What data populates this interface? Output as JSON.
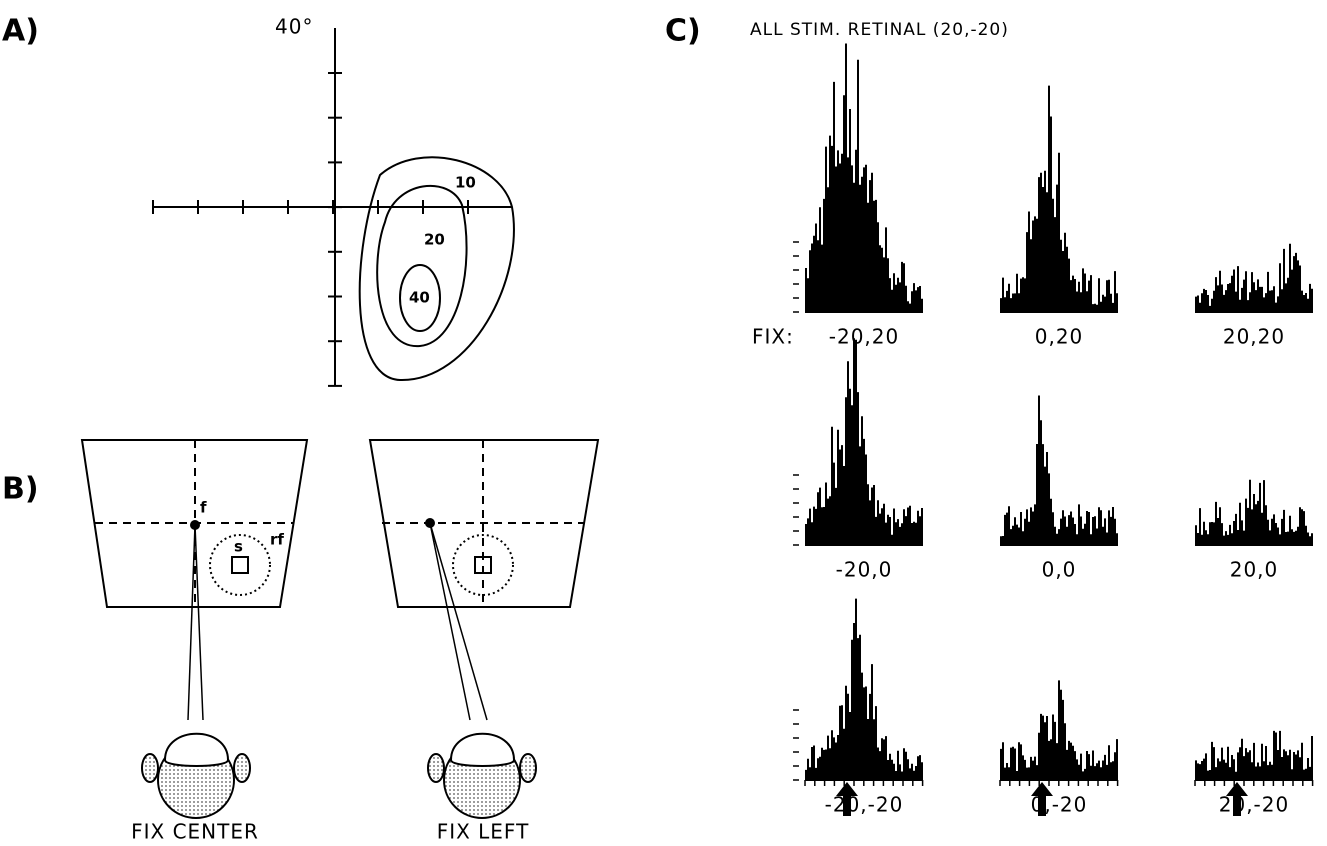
{
  "panel_a": {
    "label": "A)",
    "axis_label": "40°",
    "contours": [
      "10",
      "20",
      "40"
    ]
  },
  "panel_b": {
    "label": "B)",
    "fix_marker": "f",
    "rf_label": "rf",
    "stim_label": "s",
    "captions": [
      "FIX CENTER",
      "FIX LEFT"
    ]
  },
  "panel_c": {
    "label": "C)",
    "title": "ALL STIM. RETINAL (20,-20)",
    "fix_prefix": "FIX:",
    "histograms": [
      "-20,20",
      "0,20",
      "20,20",
      "-20,0",
      "0,0",
      "20,0",
      "-20,-20",
      "0,-20",
      "20,-20"
    ]
  }
}
